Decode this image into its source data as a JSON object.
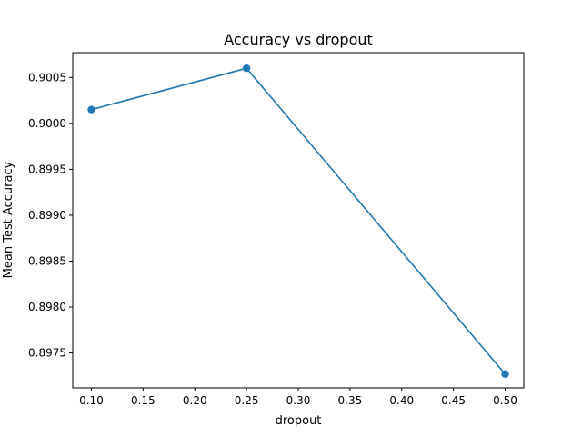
{
  "chart_data": {
    "type": "line",
    "title": "Accuracy vs dropout",
    "xlabel": "dropout",
    "ylabel": "Mean Test Accuracy",
    "x": [
      0.1,
      0.25,
      0.5
    ],
    "series": [
      {
        "name": "",
        "values": [
          0.90015,
          0.9006,
          0.89727
        ],
        "color": "#1f77b4"
      }
    ],
    "xlim": [
      0.082,
      0.518
    ],
    "ylim": [
      0.89712,
      0.90077
    ],
    "xticks": [
      0.1,
      0.15,
      0.2,
      0.25,
      0.3,
      0.35,
      0.4,
      0.45,
      0.5
    ],
    "xtick_labels": [
      "0.10",
      "0.15",
      "0.20",
      "0.25",
      "0.30",
      "0.35",
      "0.40",
      "0.45",
      "0.50"
    ],
    "yticks": [
      0.8975,
      0.898,
      0.8985,
      0.899,
      0.8995,
      0.9,
      0.9005
    ],
    "ytick_labels": [
      "0.8975",
      "0.8980",
      "0.8985",
      "0.8990",
      "0.8995",
      "0.9000",
      "0.9005"
    ],
    "grid": false,
    "legend": "none"
  }
}
